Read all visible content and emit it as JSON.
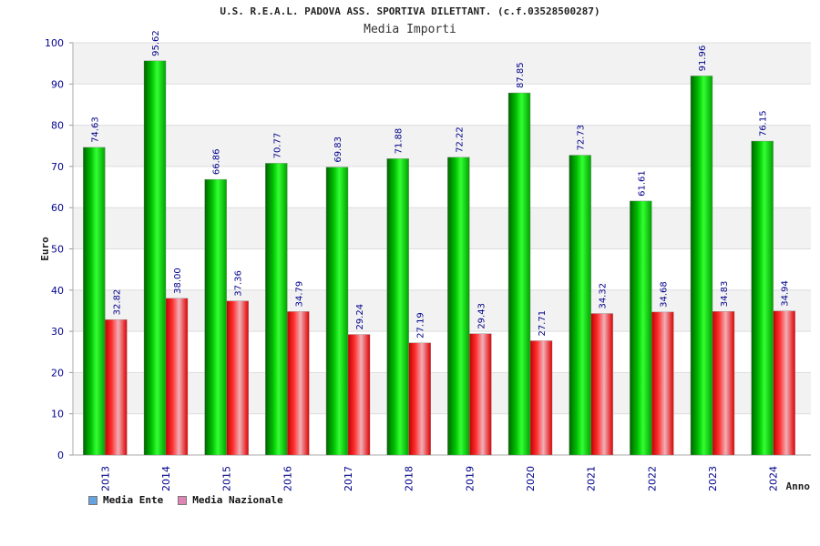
{
  "header": {
    "title": "U.S. R.E.A.L. PADOVA ASS. SPORTIVA DILETTANT. (c.f.03528500287)",
    "subtitle": "Media Importi"
  },
  "legend": {
    "items": [
      {
        "label": "Media Ente",
        "color": "#66a3e0"
      },
      {
        "label": "Media Nazionale",
        "color": "#e083b5"
      }
    ]
  },
  "chart_data": {
    "type": "bar",
    "categories": [
      "2013",
      "2014",
      "2015",
      "2016",
      "2017",
      "2018",
      "2019",
      "2020",
      "2021",
      "2022",
      "2023",
      "2024"
    ],
    "series": [
      {
        "name": "Media Ente",
        "color": "#00c000",
        "values": [
          74.63,
          95.62,
          66.86,
          70.77,
          69.83,
          71.88,
          72.22,
          87.85,
          72.73,
          61.61,
          91.96,
          76.15
        ]
      },
      {
        "name": "Media Nazionale",
        "color": "#e00000",
        "values": [
          32.82,
          38.0,
          37.36,
          34.79,
          29.24,
          27.19,
          29.43,
          27.71,
          34.32,
          34.68,
          34.83,
          34.94
        ]
      }
    ],
    "data_labels": [
      [
        "74.63",
        "95.62",
        "66.86",
        "70.77",
        "69.83",
        "71.88",
        "72.22",
        "87.85",
        "72.73",
        "61.61",
        "91.96",
        "76.15"
      ],
      [
        "32.82",
        "38.00",
        "37.36",
        "34.79",
        "29.24",
        "27.19",
        "29.43",
        "27.71",
        "34.32",
        "34.68",
        "34.83",
        "34.94"
      ]
    ],
    "ylabel": "Euro",
    "xlabel": "Anno",
    "ylim": [
      0,
      100
    ],
    "yticks": [
      "0",
      "10",
      "20",
      "30",
      "40",
      "50",
      "60",
      "70",
      "80",
      "90",
      "100"
    ],
    "grid": true
  }
}
